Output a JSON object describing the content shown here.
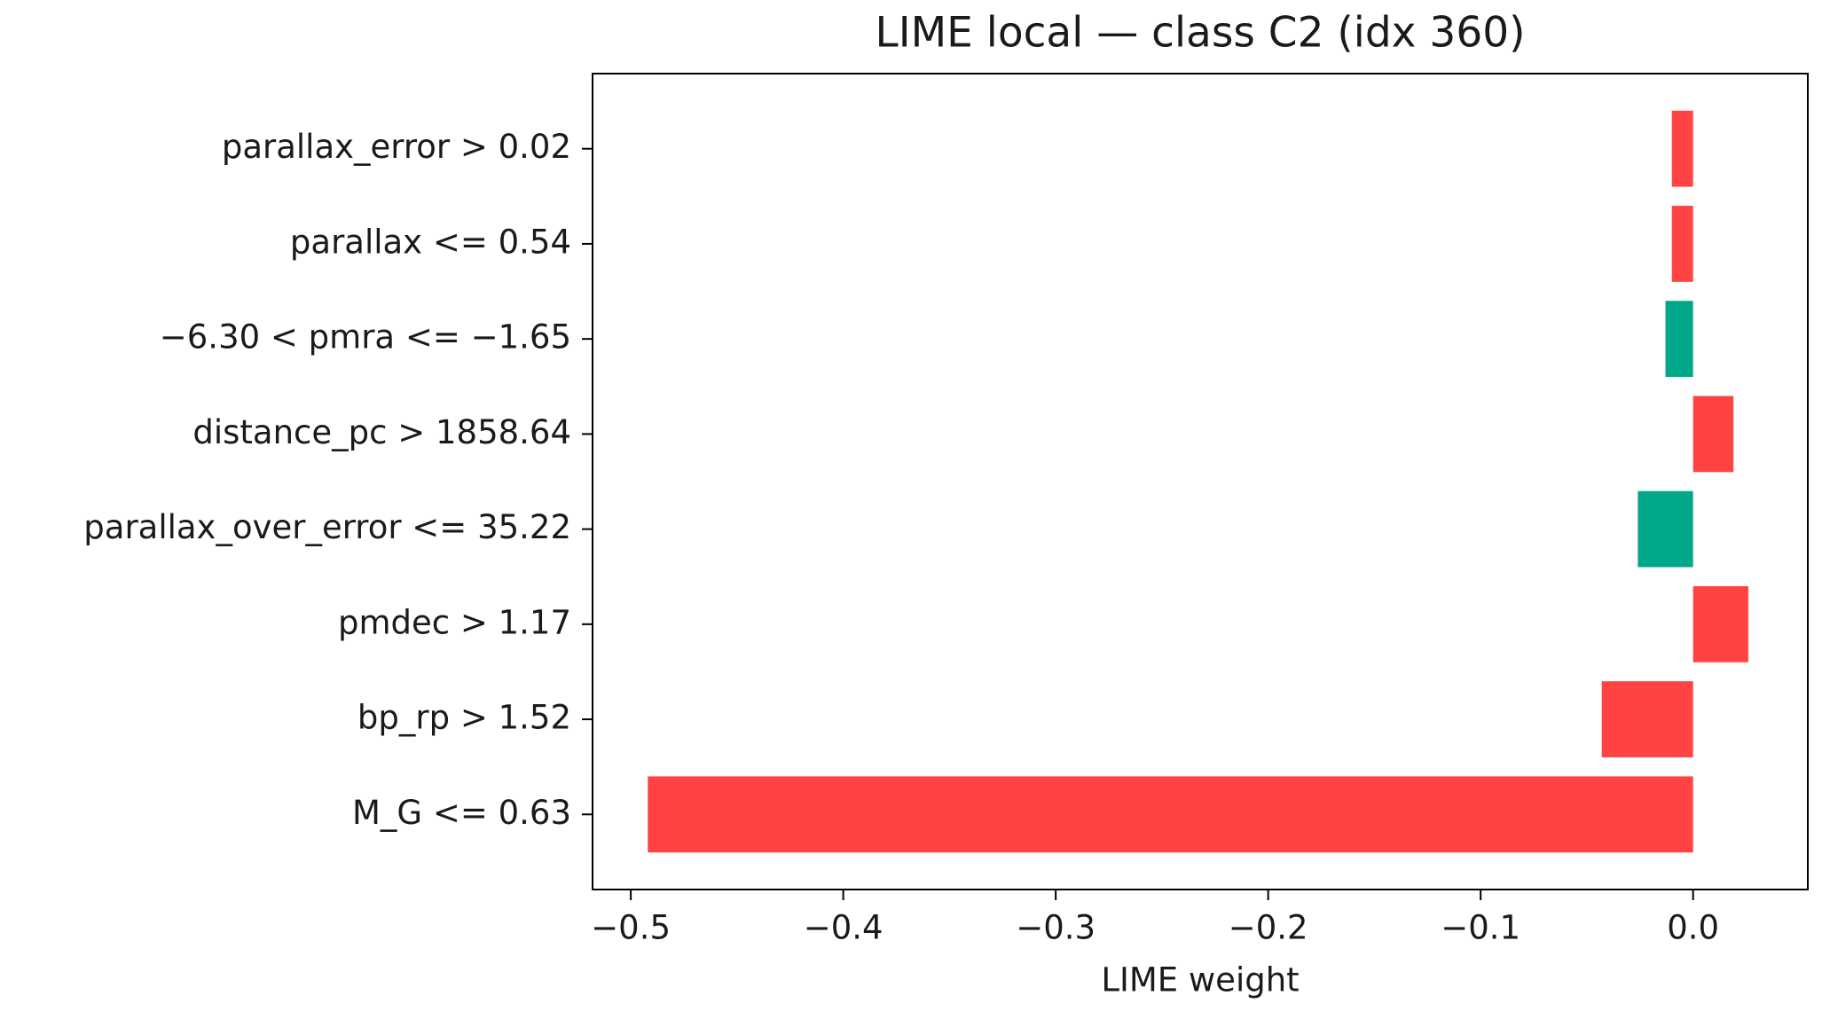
{
  "chart_data": {
    "type": "barh",
    "title": "LIME local — class C2 (idx 360)",
    "x_label": "LIME weight",
    "categories": [
      "parallax_error > 0.02",
      "parallax <= 0.54",
      "−6.30 < pmra <= −1.65",
      "distance_pc > 1858.64",
      "parallax_over_error <= 35.22",
      "pmdec > 1.17",
      "bp_rp > 1.52",
      "M_G <= 0.63"
    ],
    "values": [
      -0.01,
      -0.01,
      -0.013,
      0.019,
      -0.026,
      0.026,
      -0.043,
      -0.492
    ],
    "colors": [
      "#ff4343",
      "#ff4343",
      "#00a88a",
      "#ff4343",
      "#00a88a",
      "#ff4343",
      "#ff4343",
      "#ff4343"
    ],
    "xlim": [
      -0.518,
      0.054
    ],
    "xticks": [
      {
        "value": -0.5,
        "label": "−0.5"
      },
      {
        "value": -0.4,
        "label": "−0.4"
      },
      {
        "value": -0.3,
        "label": "−0.3"
      },
      {
        "value": -0.2,
        "label": "−0.2"
      },
      {
        "value": -0.1,
        "label": "−0.1"
      },
      {
        "value": 0,
        "label": "0.0"
      }
    ],
    "grid": false
  }
}
